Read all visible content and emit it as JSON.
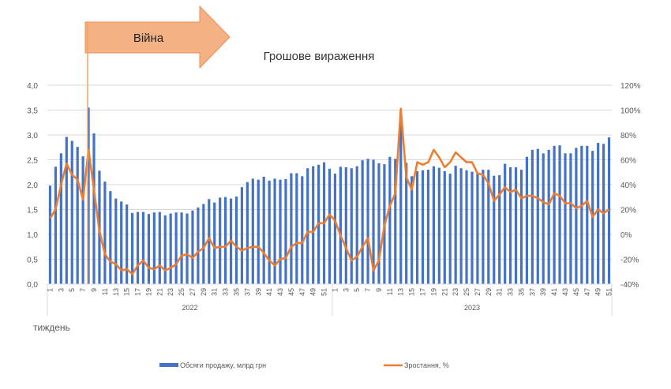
{
  "annotation": {
    "label": "Війна",
    "color": "#F4B183",
    "line_color": "#F4A460"
  },
  "chart_data": {
    "type": "bar+line",
    "title": "Грошове вираження",
    "xlabel": "тиждень",
    "groups": [
      {
        "year": "2022",
        "weeks": 52
      },
      {
        "year": "2023",
        "weeks": 51
      }
    ],
    "war_start": {
      "year": "2022",
      "week": 8
    },
    "y_left": {
      "lim": [
        0,
        4
      ],
      "ticks": [
        "0,0",
        "0,5",
        "1,0",
        "1,5",
        "2,0",
        "2,5",
        "3,0",
        "3,5",
        "4,0"
      ]
    },
    "y_right": {
      "lim": [
        -40,
        120
      ],
      "ticks": [
        "-40%",
        "-20%",
        "0%",
        "20%",
        "40%",
        "60%",
        "80%",
        "100%",
        "120%"
      ]
    },
    "series": [
      {
        "name": "Обсяги продажу, млрд грн",
        "type": "bar",
        "color": "#4472C4",
        "axis": "left",
        "values": [
          1.98,
          2.36,
          2.63,
          2.96,
          2.88,
          2.76,
          2.57,
          3.55,
          3.03,
          2.28,
          2.06,
          1.87,
          1.72,
          1.66,
          1.6,
          1.43,
          1.45,
          1.45,
          1.41,
          1.44,
          1.45,
          1.38,
          1.42,
          1.44,
          1.44,
          1.42,
          1.48,
          1.54,
          1.61,
          1.71,
          1.64,
          1.74,
          1.75,
          1.72,
          1.76,
          1.95,
          2.05,
          2.12,
          2.1,
          2.16,
          2.08,
          2.12,
          2.1,
          2.11,
          2.23,
          2.23,
          2.17,
          2.33,
          2.37,
          2.4,
          2.45,
          2.32,
          2.22,
          2.36,
          2.35,
          2.33,
          2.37,
          2.49,
          2.52,
          2.5,
          2.43,
          2.41,
          2.56,
          2.52,
          3.3,
          2.44,
          2.17,
          2.27,
          2.29,
          2.3,
          2.37,
          2.34,
          2.27,
          2.22,
          2.38,
          2.33,
          2.29,
          2.26,
          2.22,
          2.3,
          2.3,
          2.18,
          2.19,
          2.42,
          2.35,
          2.35,
          2.3,
          2.56,
          2.7,
          2.72,
          2.63,
          2.7,
          2.78,
          2.79,
          2.63,
          2.63,
          2.74,
          2.78,
          2.78,
          2.68,
          2.84,
          2.82,
          2.95
        ]
      },
      {
        "name": "Зростання, %",
        "type": "line",
        "color": "#ED7D31",
        "axis": "right",
        "values": [
          13,
          20,
          40,
          57,
          48,
          44,
          28,
          68,
          36,
          3,
          -16,
          -22,
          -24,
          -29,
          -28,
          -32,
          -25,
          -21,
          -27,
          -28,
          -25,
          -29,
          -27,
          -24,
          -17,
          -16,
          -19,
          -14,
          -11,
          -3,
          -11,
          -10,
          -10,
          -5,
          -10,
          -13,
          -11,
          -10,
          -10,
          -15,
          -21,
          -25,
          -20,
          -19,
          -10,
          -7,
          -7,
          2,
          2,
          9,
          9,
          16,
          11,
          -1,
          -11,
          -21,
          -18,
          -10,
          -3,
          -29,
          -21,
          7,
          23,
          33,
          101,
          46,
          36,
          58,
          56,
          58,
          68,
          62,
          54,
          58,
          66,
          62,
          58,
          58,
          49,
          48,
          41,
          27,
          32,
          38,
          34,
          36,
          29,
          31,
          31,
          29,
          26,
          24,
          33,
          31,
          25,
          25,
          21,
          23,
          27,
          14,
          20,
          17,
          20
        ]
      }
    ],
    "grid": true,
    "legend": "bottom"
  }
}
